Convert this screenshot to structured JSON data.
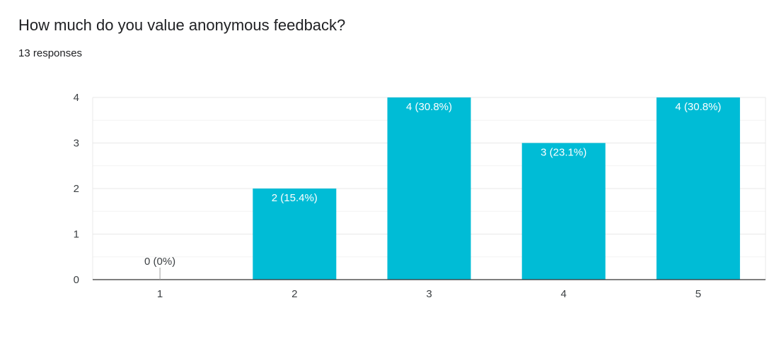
{
  "question": {
    "title": "How much do you value anonymous feedback?",
    "responses_label": "13 responses"
  },
  "colors": {
    "bar": "#00bcd6",
    "bar_label": "#ffffff",
    "axis_text": "#3c4043",
    "grid": "#e8e8e8",
    "minor_grid": "#f3f3f3",
    "baseline": "#333333"
  },
  "chart_data": {
    "type": "bar",
    "title": "How much do you value anonymous feedback?",
    "xlabel": "",
    "ylabel": "",
    "categories": [
      "1",
      "2",
      "3",
      "4",
      "5"
    ],
    "values": [
      0,
      2,
      4,
      3,
      4
    ],
    "data_labels": [
      "0 (0%)",
      "2 (15.4%)",
      "4 (30.8%)",
      "3 (23.1%)",
      "4 (30.8%)"
    ],
    "y_ticks": [
      "0",
      "1",
      "2",
      "3",
      "4"
    ],
    "ylim": [
      0,
      4
    ],
    "grid": true,
    "legend": "none"
  }
}
